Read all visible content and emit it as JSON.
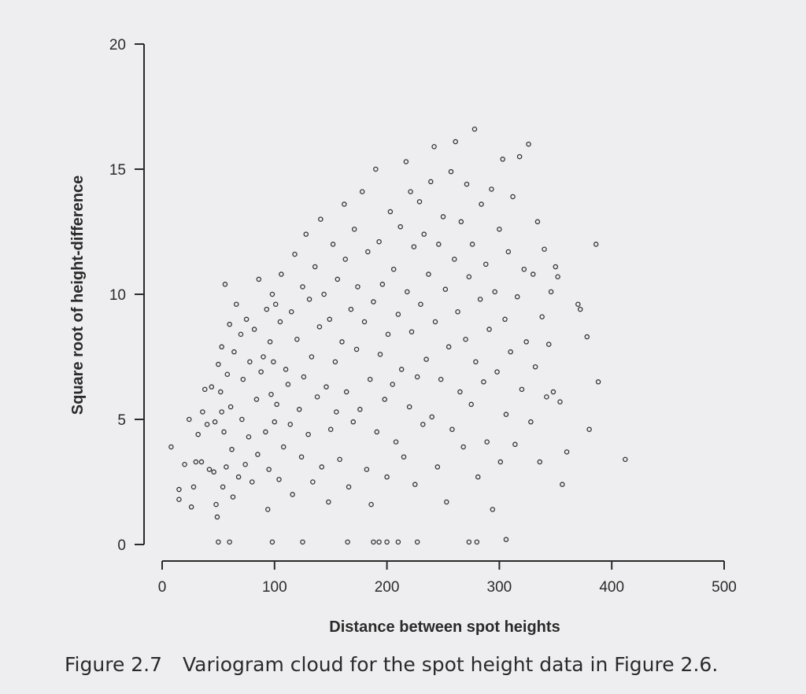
{
  "caption": {
    "number": "Figure 2.7",
    "text": "Variogram cloud for the spot height data in Figure 2.6."
  },
  "chart_data": {
    "type": "scatter",
    "title": "",
    "xlabel": "Distance between spot heights",
    "ylabel": "Square root of height-difference",
    "xlim": [
      0,
      500
    ],
    "ylim": [
      0,
      20
    ],
    "xticks": [
      0,
      100,
      200,
      300,
      400,
      500
    ],
    "yticks": [
      0,
      5,
      10,
      15,
      20
    ],
    "grid": false,
    "marker": "open-circle",
    "points": [
      [
        8,
        3.9
      ],
      [
        15,
        2.2
      ],
      [
        15,
        1.8
      ],
      [
        20,
        3.2
      ],
      [
        24,
        5.0
      ],
      [
        26,
        1.5
      ],
      [
        28,
        2.3
      ],
      [
        30,
        3.3
      ],
      [
        32,
        4.4
      ],
      [
        35,
        3.3
      ],
      [
        36,
        5.3
      ],
      [
        38,
        6.2
      ],
      [
        40,
        4.8
      ],
      [
        42,
        3.0
      ],
      [
        44,
        6.3
      ],
      [
        46,
        2.9
      ],
      [
        47,
        4.9
      ],
      [
        48,
        1.6
      ],
      [
        49,
        1.1
      ],
      [
        50,
        7.2
      ],
      [
        52,
        6.1
      ],
      [
        53,
        7.9
      ],
      [
        53,
        5.3
      ],
      [
        54,
        2.3
      ],
      [
        55,
        4.5
      ],
      [
        56,
        10.4
      ],
      [
        57,
        3.1
      ],
      [
        58,
        6.8
      ],
      [
        60,
        8.8
      ],
      [
        61,
        5.5
      ],
      [
        62,
        3.8
      ],
      [
        63,
        1.9
      ],
      [
        64,
        7.7
      ],
      [
        66,
        9.6
      ],
      [
        68,
        2.7
      ],
      [
        70,
        8.4
      ],
      [
        71,
        5.0
      ],
      [
        72,
        6.6
      ],
      [
        74,
        3.2
      ],
      [
        75,
        9.0
      ],
      [
        77,
        4.3
      ],
      [
        78,
        7.3
      ],
      [
        80,
        2.5
      ],
      [
        82,
        8.6
      ],
      [
        84,
        5.8
      ],
      [
        85,
        3.6
      ],
      [
        86,
        10.6
      ],
      [
        88,
        6.9
      ],
      [
        90,
        7.5
      ],
      [
        92,
        4.5
      ],
      [
        93,
        9.4
      ],
      [
        94,
        1.4
      ],
      [
        95,
        3.0
      ],
      [
        96,
        8.1
      ],
      [
        97,
        6.0
      ],
      [
        98,
        10.0
      ],
      [
        99,
        7.3
      ],
      [
        100,
        4.9
      ],
      [
        101,
        9.6
      ],
      [
        102,
        5.6
      ],
      [
        104,
        2.6
      ],
      [
        105,
        8.9
      ],
      [
        106,
        10.8
      ],
      [
        108,
        3.9
      ],
      [
        110,
        7.0
      ],
      [
        112,
        6.4
      ],
      [
        114,
        4.8
      ],
      [
        115,
        9.3
      ],
      [
        116,
        2.0
      ],
      [
        118,
        11.6
      ],
      [
        120,
        8.2
      ],
      [
        122,
        5.4
      ],
      [
        124,
        3.5
      ],
      [
        125,
        10.3
      ],
      [
        126,
        6.7
      ],
      [
        128,
        12.4
      ],
      [
        130,
        4.4
      ],
      [
        131,
        9.8
      ],
      [
        133,
        7.5
      ],
      [
        134,
        2.5
      ],
      [
        136,
        11.1
      ],
      [
        138,
        5.9
      ],
      [
        140,
        8.7
      ],
      [
        141,
        13.0
      ],
      [
        142,
        3.1
      ],
      [
        144,
        10.0
      ],
      [
        146,
        6.3
      ],
      [
        148,
        1.7
      ],
      [
        149,
        9.0
      ],
      [
        150,
        4.6
      ],
      [
        152,
        12.0
      ],
      [
        154,
        7.3
      ],
      [
        155,
        5.3
      ],
      [
        156,
        10.6
      ],
      [
        158,
        3.4
      ],
      [
        160,
        8.1
      ],
      [
        162,
        13.6
      ],
      [
        163,
        11.4
      ],
      [
        164,
        6.1
      ],
      [
        166,
        2.3
      ],
      [
        168,
        9.4
      ],
      [
        170,
        4.9
      ],
      [
        171,
        12.6
      ],
      [
        173,
        7.8
      ],
      [
        174,
        10.3
      ],
      [
        176,
        5.4
      ],
      [
        178,
        14.1
      ],
      [
        180,
        8.9
      ],
      [
        182,
        3.0
      ],
      [
        183,
        11.7
      ],
      [
        185,
        6.6
      ],
      [
        186,
        1.6
      ],
      [
        188,
        9.7
      ],
      [
        190,
        15.0
      ],
      [
        191,
        4.5
      ],
      [
        193,
        12.1
      ],
      [
        194,
        7.6
      ],
      [
        196,
        10.4
      ],
      [
        198,
        5.8
      ],
      [
        200,
        2.7
      ],
      [
        201,
        8.4
      ],
      [
        203,
        13.3
      ],
      [
        205,
        6.4
      ],
      [
        206,
        11.0
      ],
      [
        208,
        4.1
      ],
      [
        210,
        9.2
      ],
      [
        212,
        12.7
      ],
      [
        213,
        7.0
      ],
      [
        215,
        3.5
      ],
      [
        217,
        15.3
      ],
      [
        218,
        10.1
      ],
      [
        220,
        5.5
      ],
      [
        221,
        14.1
      ],
      [
        222,
        8.5
      ],
      [
        224,
        11.9
      ],
      [
        225,
        2.4
      ],
      [
        227,
        6.7
      ],
      [
        229,
        13.7
      ],
      [
        230,
        9.6
      ],
      [
        232,
        4.8
      ],
      [
        233,
        12.4
      ],
      [
        235,
        7.4
      ],
      [
        237,
        10.8
      ],
      [
        239,
        14.5
      ],
      [
        240,
        5.1
      ],
      [
        242,
        15.9
      ],
      [
        243,
        8.9
      ],
      [
        245,
        3.1
      ],
      [
        246,
        12.0
      ],
      [
        248,
        6.6
      ],
      [
        250,
        13.1
      ],
      [
        252,
        10.2
      ],
      [
        253,
        1.7
      ],
      [
        255,
        7.9
      ],
      [
        257,
        14.9
      ],
      [
        258,
        4.6
      ],
      [
        260,
        11.4
      ],
      [
        261,
        16.1
      ],
      [
        263,
        9.3
      ],
      [
        265,
        6.1
      ],
      [
        266,
        12.9
      ],
      [
        268,
        3.9
      ],
      [
        270,
        8.2
      ],
      [
        271,
        14.4
      ],
      [
        273,
        10.7
      ],
      [
        275,
        5.6
      ],
      [
        276,
        12.0
      ],
      [
        278,
        16.6
      ],
      [
        279,
        7.3
      ],
      [
        281,
        2.7
      ],
      [
        283,
        9.8
      ],
      [
        284,
        13.6
      ],
      [
        286,
        6.5
      ],
      [
        288,
        11.2
      ],
      [
        289,
        4.1
      ],
      [
        291,
        8.6
      ],
      [
        293,
        14.2
      ],
      [
        294,
        1.4
      ],
      [
        296,
        10.1
      ],
      [
        298,
        6.9
      ],
      [
        300,
        12.6
      ],
      [
        301,
        3.3
      ],
      [
        303,
        15.4
      ],
      [
        305,
        9.0
      ],
      [
        306,
        5.2
      ],
      [
        308,
        11.7
      ],
      [
        310,
        7.7
      ],
      [
        312,
        13.9
      ],
      [
        314,
        4.0
      ],
      [
        316,
        9.9
      ],
      [
        318,
        15.5
      ],
      [
        320,
        6.2
      ],
      [
        322,
        11.0
      ],
      [
        324,
        8.1
      ],
      [
        326,
        16.0
      ],
      [
        328,
        4.9
      ],
      [
        330,
        10.8
      ],
      [
        332,
        7.1
      ],
      [
        334,
        12.9
      ],
      [
        336,
        3.3
      ],
      [
        338,
        9.1
      ],
      [
        340,
        11.8
      ],
      [
        342,
        5.9
      ],
      [
        344,
        8.0
      ],
      [
        346,
        10.1
      ],
      [
        348,
        6.1
      ],
      [
        350,
        11.1
      ],
      [
        352,
        10.7
      ],
      [
        354,
        5.7
      ],
      [
        356,
        2.4
      ],
      [
        360,
        3.7
      ],
      [
        370,
        9.6
      ],
      [
        372,
        9.4
      ],
      [
        378,
        8.3
      ],
      [
        380,
        4.6
      ],
      [
        386,
        12.0
      ],
      [
        388,
        6.5
      ],
      [
        412,
        3.4
      ],
      [
        50,
        0.1
      ],
      [
        60,
        0.1
      ],
      [
        98,
        0.1
      ],
      [
        125,
        0.1
      ],
      [
        165,
        0.1
      ],
      [
        188,
        0.1
      ],
      [
        193,
        0.1
      ],
      [
        200,
        0.1
      ],
      [
        210,
        0.1
      ],
      [
        227,
        0.1
      ],
      [
        273,
        0.1
      ],
      [
        280,
        0.1
      ],
      [
        306,
        0.2
      ]
    ]
  }
}
